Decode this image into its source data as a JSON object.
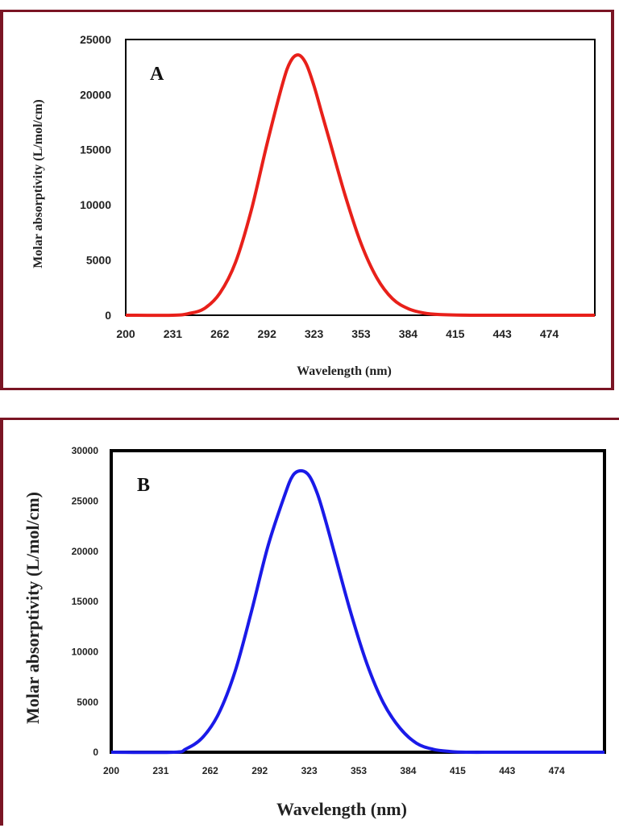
{
  "chart_data": [
    {
      "type": "line",
      "panel_label": "A",
      "xlabel": "Wavelength (nm)",
      "ylabel": "Molar absorptivity (L/mol/cm)",
      "x_tick_labels": [
        "200",
        "231",
        "262",
        "292",
        "323",
        "353",
        "384",
        "415",
        "443",
        "474"
      ],
      "y_ticks": [
        0,
        5000,
        10000,
        15000,
        20000,
        25000
      ],
      "ylim": [
        0,
        25000
      ],
      "xlim": [
        200,
        499
      ],
      "grid": false,
      "legend": "none",
      "series": [
        {
          "color": "#e8201a",
          "x": [
            200,
            230,
            240,
            250,
            260,
            270,
            280,
            290,
            300,
            305,
            310,
            315,
            320,
            325,
            330,
            340,
            350,
            360,
            370,
            380,
            390,
            400,
            420,
            450,
            499
          ],
          "y": [
            0,
            0,
            150,
            600,
            2000,
            4800,
            9500,
            15500,
            21000,
            23000,
            23600,
            22800,
            20800,
            18300,
            15800,
            10800,
            6500,
            3400,
            1500,
            600,
            200,
            60,
            0,
            0,
            0
          ]
        }
      ]
    },
    {
      "type": "line",
      "panel_label": "B",
      "xlabel": "Wavelength (nm)",
      "ylabel": "Molar absorptivity (L/mol/cm)",
      "x_tick_labels": [
        "200",
        "231",
        "262",
        "292",
        "323",
        "353",
        "384",
        "415",
        "443",
        "474"
      ],
      "y_ticks": [
        0,
        5000,
        10000,
        15000,
        20000,
        25000,
        30000
      ],
      "ylim": [
        0,
        30000
      ],
      "xlim": [
        200,
        499
      ],
      "grid": false,
      "legend": "none",
      "series": [
        {
          "color": "#1a1ae8",
          "x": [
            200,
            238,
            245,
            255,
            265,
            275,
            285,
            295,
            305,
            310,
            315,
            320,
            325,
            330,
            335,
            345,
            355,
            365,
            375,
            385,
            395,
            405,
            415,
            440,
            499
          ],
          "y": [
            0,
            0,
            300,
            1400,
            3800,
            8000,
            14000,
            20500,
            25500,
            27500,
            28000,
            27500,
            25700,
            23000,
            20000,
            14000,
            8800,
            4900,
            2400,
            900,
            300,
            80,
            0,
            0,
            0
          ]
        }
      ]
    }
  ]
}
